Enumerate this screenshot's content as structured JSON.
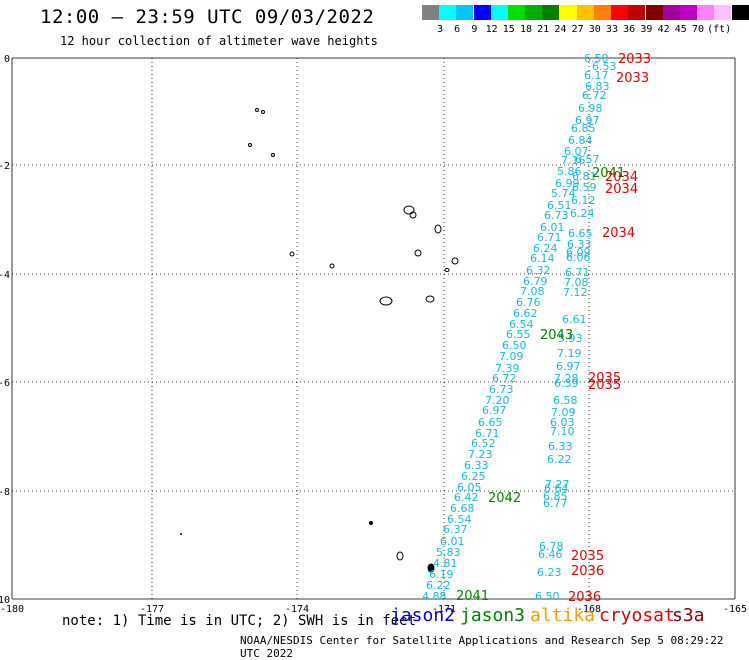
{
  "header": {
    "title": "12:00 – 23:59 UTC 09/03/2022",
    "subtitle": "12 hour collection of altimeter wave heights"
  },
  "colorbar": {
    "colors": [
      "#808080",
      "#00ffff",
      "#00c8ff",
      "#0000ff",
      "#00ffff",
      "#00e000",
      "#00b000",
      "#008000",
      "#ffff00",
      "#ffc000",
      "#ff8000",
      "#ff0000",
      "#c00000",
      "#800000",
      "#a000a0",
      "#c000c0",
      "#ff80ff",
      "#ffc0ff",
      "#000000"
    ],
    "labels": [
      "3",
      "6",
      "9",
      "12",
      "15",
      "18",
      "21",
      "24",
      "27",
      "30",
      "33",
      "36",
      "39",
      "42",
      "45",
      "70"
    ],
    "unit": "(ft)"
  },
  "axes": {
    "x_ticks": [
      "-180",
      "-177",
      "-174",
      "-171",
      "-168",
      "-165"
    ],
    "y_ticks": [
      "0",
      "-2",
      "-4",
      "-6",
      "-8",
      "-10"
    ]
  },
  "observations": [
    {
      "v": "6.50",
      "x": 584,
      "y": 62
    },
    {
      "v": "6.53",
      "x": 592,
      "y": 70
    },
    {
      "v": "6.17",
      "x": 584,
      "y": 79
    },
    {
      "v": "6.83",
      "x": 585,
      "y": 90
    },
    {
      "v": "6.72",
      "x": 582,
      "y": 99
    },
    {
      "v": "6.98",
      "x": 578,
      "y": 112
    },
    {
      "v": "6.97",
      "x": 575,
      "y": 124
    },
    {
      "v": "6.85",
      "x": 571,
      "y": 132
    },
    {
      "v": "6.84",
      "x": 568,
      "y": 144
    },
    {
      "v": "6.07",
      "x": 564,
      "y": 155
    },
    {
      "v": "7.16",
      "x": 561,
      "y": 164
    },
    {
      "v": "6.57",
      "x": 575,
      "y": 163
    },
    {
      "v": "5.86",
      "x": 557,
      "y": 175
    },
    {
      "v": "6.99",
      "x": 555,
      "y": 187
    },
    {
      "v": "5.74",
      "x": 551,
      "y": 197
    },
    {
      "v": "6.51",
      "x": 547,
      "y": 209
    },
    {
      "v": "6.73",
      "x": 544,
      "y": 219
    },
    {
      "v": "6.01",
      "x": 540,
      "y": 231
    },
    {
      "v": "6.71",
      "x": 537,
      "y": 241
    },
    {
      "v": "6.24",
      "x": 533,
      "y": 252
    },
    {
      "v": "6.14",
      "x": 530,
      "y": 262
    },
    {
      "v": "6.32",
      "x": 526,
      "y": 274
    },
    {
      "v": "6.79",
      "x": 523,
      "y": 285
    },
    {
      "v": "7.08",
      "x": 520,
      "y": 295
    },
    {
      "v": "6.76",
      "x": 516,
      "y": 306
    },
    {
      "v": "6.62",
      "x": 513,
      "y": 317
    },
    {
      "v": "6.54",
      "x": 509,
      "y": 328
    },
    {
      "v": "6.55",
      "x": 506,
      "y": 338
    },
    {
      "v": "6.50",
      "x": 502,
      "y": 349
    },
    {
      "v": "7.09",
      "x": 499,
      "y": 360
    },
    {
      "v": "7.39",
      "x": 495,
      "y": 372
    },
    {
      "v": "6.72",
      "x": 492,
      "y": 382
    },
    {
      "v": "6.73",
      "x": 489,
      "y": 393
    },
    {
      "v": "7.20",
      "x": 485,
      "y": 404
    },
    {
      "v": "6.97",
      "x": 482,
      "y": 414
    },
    {
      "v": "6.65",
      "x": 478,
      "y": 426
    },
    {
      "v": "6.71",
      "x": 475,
      "y": 437
    },
    {
      "v": "6.52",
      "x": 471,
      "y": 447
    },
    {
      "v": "7.23",
      "x": 468,
      "y": 458
    },
    {
      "v": "6.33",
      "x": 464,
      "y": 469
    },
    {
      "v": "6.25",
      "x": 461,
      "y": 480
    },
    {
      "v": "6.05",
      "x": 457,
      "y": 491
    },
    {
      "v": "6.42",
      "x": 454,
      "y": 501
    },
    {
      "v": "6.68",
      "x": 450,
      "y": 512
    },
    {
      "v": "6.54",
      "x": 447,
      "y": 523
    },
    {
      "v": "6.37",
      "x": 443,
      "y": 533
    },
    {
      "v": "6.01",
      "x": 440,
      "y": 545
    },
    {
      "v": "5.83",
      "x": 436,
      "y": 556
    },
    {
      "v": "4.81",
      "x": 433,
      "y": 567
    },
    {
      "v": "6.19",
      "x": 429,
      "y": 578
    },
    {
      "v": "6.22",
      "x": 426,
      "y": 589
    },
    {
      "v": "4.88",
      "x": 422,
      "y": 600
    },
    {
      "v": "6.81",
      "x": 572,
      "y": 180
    },
    {
      "v": "6.59",
      "x": 572,
      "y": 191
    },
    {
      "v": "6.12",
      "x": 571,
      "y": 204
    },
    {
      "v": "6.24",
      "x": 570,
      "y": 217
    },
    {
      "v": "6.65",
      "x": 568,
      "y": 237
    },
    {
      "v": "6.33",
      "x": 567,
      "y": 248
    },
    {
      "v": "6.09",
      "x": 566,
      "y": 256
    },
    {
      "v": "6.06",
      "x": 566,
      "y": 261
    },
    {
      "v": "6.71",
      "x": 565,
      "y": 276
    },
    {
      "v": "7.08",
      "x": 564,
      "y": 286
    },
    {
      "v": "7.12",
      "x": 563,
      "y": 296
    },
    {
      "v": "6.61",
      "x": 562,
      "y": 323
    },
    {
      "v": "5.93",
      "x": 558,
      "y": 342
    },
    {
      "v": "7.19",
      "x": 557,
      "y": 357
    },
    {
      "v": "6.97",
      "x": 556,
      "y": 370
    },
    {
      "v": "7.28",
      "x": 554,
      "y": 382
    },
    {
      "v": "6.39",
      "x": 554,
      "y": 387
    },
    {
      "v": "6.58",
      "x": 553,
      "y": 404
    },
    {
      "v": "7.09",
      "x": 551,
      "y": 416
    },
    {
      "v": "6.03",
      "x": 550,
      "y": 426
    },
    {
      "v": "7.10",
      "x": 550,
      "y": 435
    },
    {
      "v": "6.33",
      "x": 548,
      "y": 450
    },
    {
      "v": "6.22",
      "x": 547,
      "y": 463
    },
    {
      "v": "7.27",
      "x": 545,
      "y": 488
    },
    {
      "v": "6.64",
      "x": 544,
      "y": 492
    },
    {
      "v": "6.85",
      "x": 543,
      "y": 500
    },
    {
      "v": "6.77",
      "x": 543,
      "y": 507
    },
    {
      "v": "6.78",
      "x": 539,
      "y": 550
    },
    {
      "v": "6.46",
      "x": 538,
      "y": 558
    },
    {
      "v": "6.23",
      "x": 537,
      "y": 576
    },
    {
      "v": "6.50",
      "x": 535,
      "y": 600
    }
  ],
  "pass_labels": [
    {
      "t": "2033",
      "c": "#e00000",
      "x": 618,
      "y": 63
    },
    {
      "t": "2033",
      "c": "#e00000",
      "x": 616,
      "y": 82
    },
    {
      "t": "2041",
      "c": "#008000",
      "x": 592,
      "y": 177
    },
    {
      "t": "2034",
      "c": "#e00000",
      "x": 605,
      "y": 181
    },
    {
      "t": "2034",
      "c": "#e00000",
      "x": 605,
      "y": 193
    },
    {
      "t": "2034",
      "c": "#e00000",
      "x": 602,
      "y": 237
    },
    {
      "t": "2043",
      "c": "#008000",
      "x": 540,
      "y": 339
    },
    {
      "t": "2035",
      "c": "#e00000",
      "x": 588,
      "y": 382
    },
    {
      "t": "2035",
      "c": "#e00000",
      "x": 588,
      "y": 389
    },
    {
      "t": "2042",
      "c": "#008000",
      "x": 488,
      "y": 502
    },
    {
      "t": "2035",
      "c": "#e00000",
      "x": 571,
      "y": 560
    },
    {
      "t": "2036",
      "c": "#e00000",
      "x": 571,
      "y": 575
    },
    {
      "t": "2041",
      "c": "#008000",
      "x": 456,
      "y": 600
    },
    {
      "t": "2036",
      "c": "#e00000",
      "x": 568,
      "y": 601
    }
  ],
  "footer": {
    "note": "note: 1) Time is in UTC; 2) SWH is in feet",
    "legend": [
      {
        "label": "jason2",
        "color": "#0000dd"
      },
      {
        "label": "jason3",
        "color": "#008000"
      },
      {
        "label": "altika",
        "color": "#ff9900"
      },
      {
        "label": "cryosat",
        "color": "#e00000"
      },
      {
        "label": "s3a",
        "color": "#880000"
      }
    ],
    "credit": "NOAA/NESDIS Center for Satellite Applications and Research   Sep  5 08:29:22 UTC 2022"
  }
}
